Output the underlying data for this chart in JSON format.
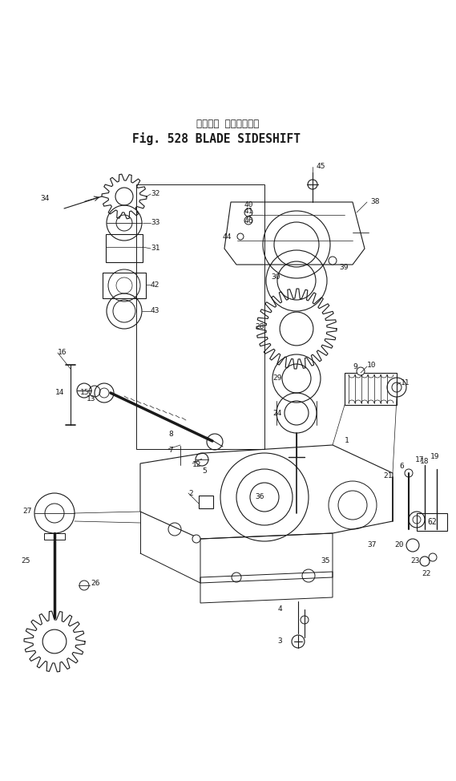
{
  "title_japanese": "ブレード サイドシフト",
  "title_english": "Fig. 528 BLADE SIDESHIFT",
  "bg_color": "#ffffff",
  "line_color": "#1a1a1a",
  "fig_width": 5.69,
  "fig_height": 9.74,
  "dpi": 100
}
